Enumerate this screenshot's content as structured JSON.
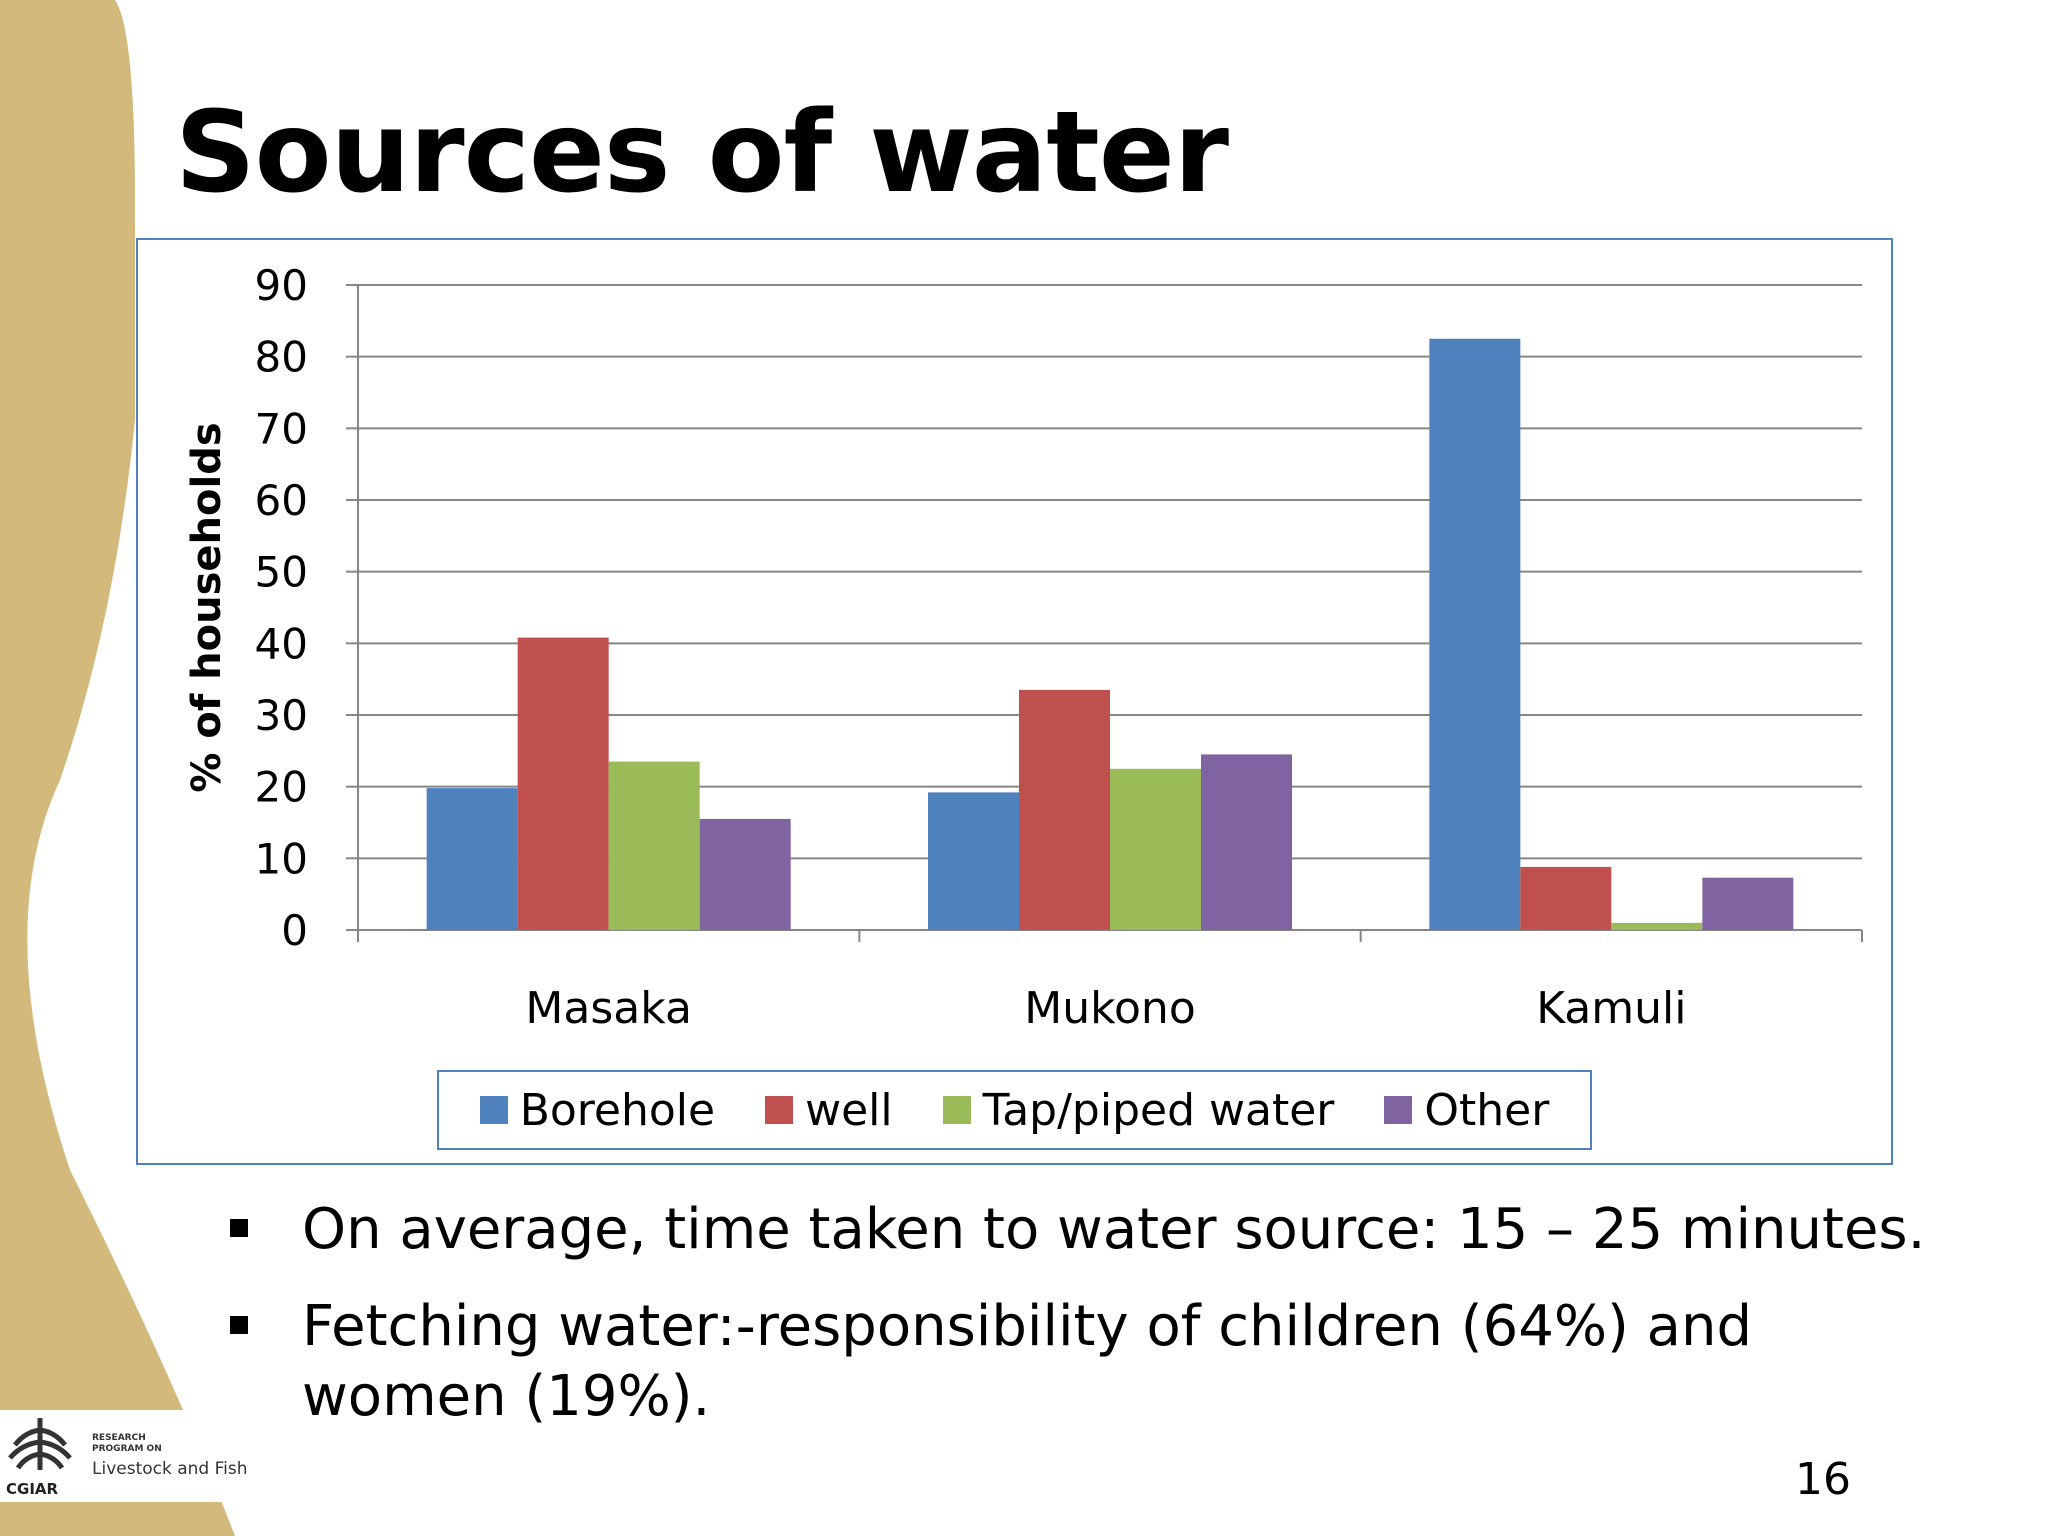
{
  "slide": {
    "title": "Sources of water",
    "page_number": "16",
    "bullets": [
      "On average, time taken to water source: 15 – 25 minutes.",
      "Fetching water:-responsibility of children (64%) and women (19%)."
    ]
  },
  "logo": {
    "line1": "RESEARCH",
    "line2": "PROGRAM ON",
    "program": "Livestock and Fish",
    "org": "CGIAR"
  },
  "colors": {
    "decor_band": "#d4b97c",
    "frame_border": "#4f81bd"
  },
  "chart_data": {
    "type": "bar",
    "title": "",
    "xlabel": "",
    "ylabel": "% of households",
    "ylim": [
      0,
      90
    ],
    "yticks": [
      0,
      10,
      20,
      30,
      40,
      50,
      60,
      70,
      80,
      90
    ],
    "grid": true,
    "legend_position": "bottom",
    "categories": [
      "Masaka",
      "Mukono",
      "Kamuli"
    ],
    "series": [
      {
        "name": "Borehole",
        "color": "#4f81bd",
        "values": [
          19.8,
          19.2,
          82.5
        ]
      },
      {
        "name": "well",
        "color": "#c0504d",
        "values": [
          40.8,
          33.5,
          8.8
        ]
      },
      {
        "name": "Tap/piped water",
        "color": "#9bbb59",
        "values": [
          23.5,
          22.5,
          1.0
        ]
      },
      {
        "name": "Other",
        "color": "#8064a2",
        "values": [
          15.5,
          24.5,
          7.3
        ]
      }
    ]
  }
}
